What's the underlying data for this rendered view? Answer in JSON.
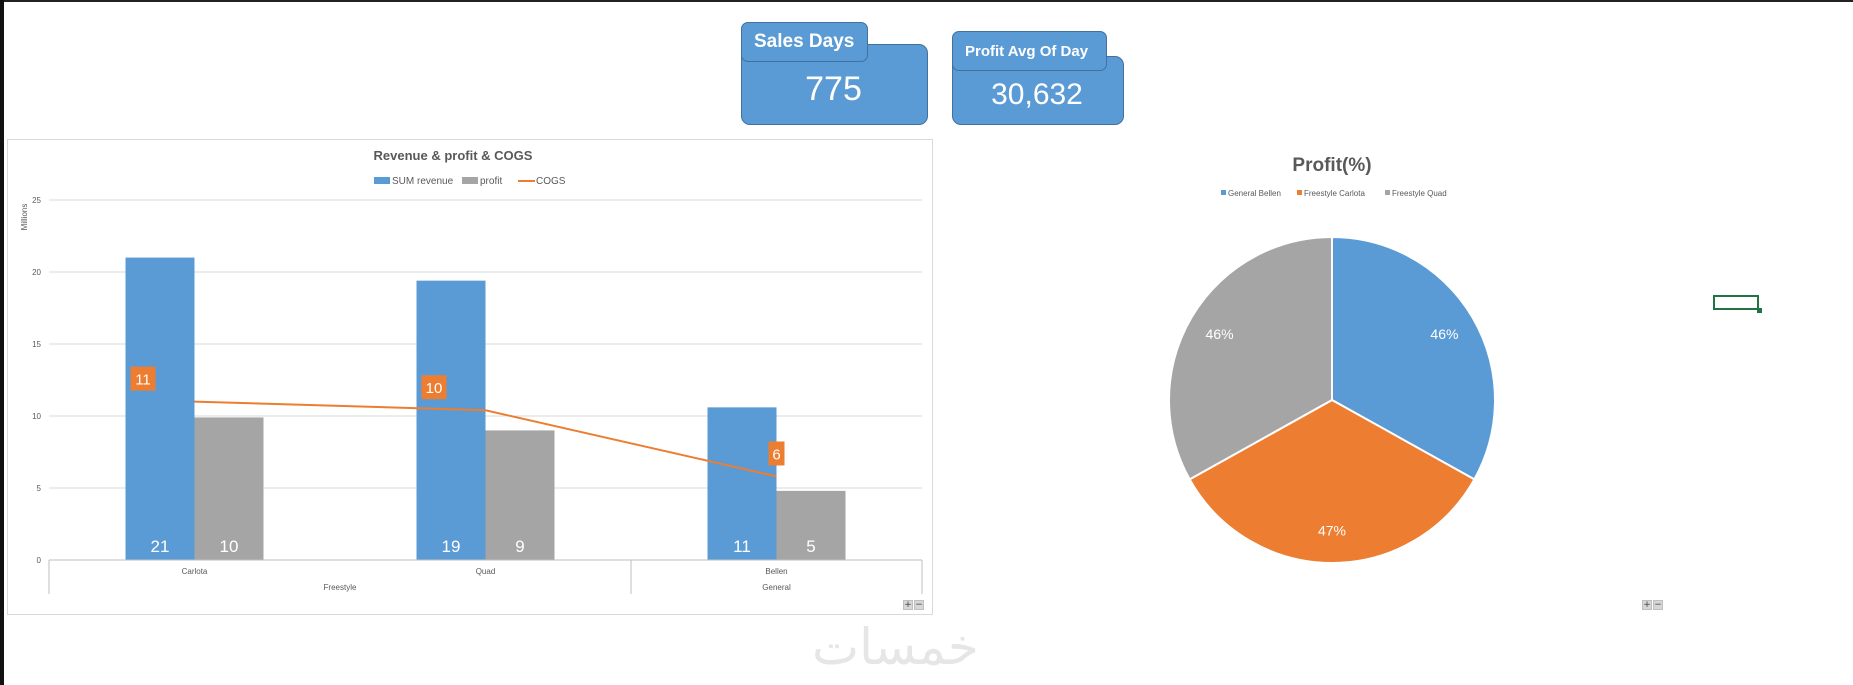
{
  "kpis": {
    "sales_days": {
      "label": "Sales Days",
      "value": "775"
    },
    "profit_avg": {
      "label": "Profit Avg Of Day",
      "value": "30,632"
    }
  },
  "colors": {
    "revenue": "#5b9bd5",
    "profit": "#a5a5a5",
    "cogs": "#ed7d31"
  },
  "watermark": "خمسات",
  "zoom": {
    "plus": "+",
    "minus": "−"
  },
  "chart_data": [
    {
      "type": "bar",
      "title": "Revenue & profit & COGS",
      "ylabel": "Millions",
      "ylim": [
        0,
        25
      ],
      "yticks": [
        0,
        5,
        10,
        15,
        20,
        25
      ],
      "categories": [
        "Carlota",
        "Quad",
        "Bellen"
      ],
      "groups": [
        {
          "label": "Freestyle",
          "categories": [
            "Carlota",
            "Quad"
          ]
        },
        {
          "label": "General",
          "categories": [
            "Bellen"
          ]
        }
      ],
      "legend_position": "top",
      "grid": true,
      "series": [
        {
          "name": "SUM revenue",
          "kind": "bar",
          "values": [
            21,
            19.4,
            10.6
          ],
          "labels": [
            "21",
            "19",
            "11"
          ]
        },
        {
          "name": "profit",
          "kind": "bar",
          "values": [
            9.9,
            9.0,
            4.8
          ],
          "labels": [
            "10",
            "9",
            "5"
          ]
        },
        {
          "name": "COGS",
          "kind": "line",
          "values": [
            11,
            10.4,
            5.8
          ],
          "labels": [
            "11",
            "10",
            "6"
          ]
        }
      ]
    },
    {
      "type": "pie",
      "title": "Profit(%)",
      "legend_position": "top",
      "categories": [
        "General Bellen",
        "Freestyle Carlota",
        "Freestyle Quad"
      ],
      "values": [
        46,
        47,
        46
      ],
      "labels": [
        "46%",
        "47%",
        "46%"
      ],
      "colors": [
        "#5b9bd5",
        "#ed7d31",
        "#a5a5a5"
      ]
    }
  ]
}
